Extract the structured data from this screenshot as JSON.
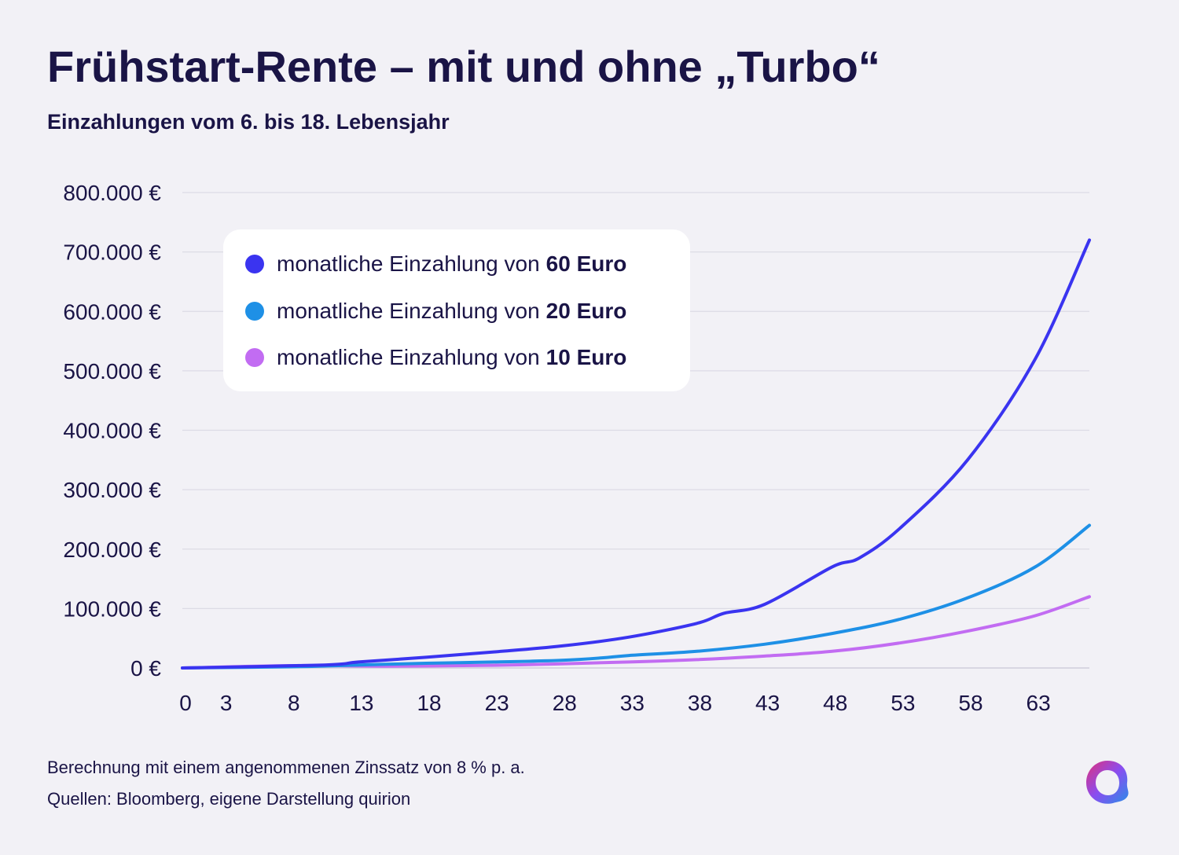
{
  "chart_data": {
    "type": "line",
    "title": "Frühstart-Rente – mit und ohne „Turbo“",
    "subtitle": "Einzahlungen vom 6. bis 18. Lebensjahr",
    "xlabel": "",
    "ylabel": "",
    "xlim": [
      0,
      67
    ],
    "ylim": [
      0,
      800000
    ],
    "x_ticks": [
      0,
      3,
      8,
      13,
      18,
      23,
      28,
      33,
      38,
      43,
      48,
      53,
      58,
      63
    ],
    "x_tick_labels": [
      "0",
      "3",
      "8",
      "13",
      "18",
      "23",
      "28",
      "33",
      "38",
      "43",
      "48",
      "53",
      "58",
      "63"
    ],
    "y_ticks": [
      0,
      100000,
      200000,
      300000,
      400000,
      500000,
      600000,
      700000,
      800000
    ],
    "y_tick_labels": [
      "0 €",
      "100.000 €",
      "200.000 €",
      "300.000 €",
      "400.000 €",
      "500.000 €",
      "600.000 €",
      "700.000 €",
      "800.000 €"
    ],
    "grid": true,
    "legend_position": "top-left",
    "series": [
      {
        "name": "monatliche Einzahlung von 60 Euro",
        "legend_prefix": "monatliche Einzahlung von",
        "legend_amount": "60 Euro",
        "color": "#3a34f0",
        "x": [
          10.5,
          13,
          18,
          23,
          28,
          33,
          38,
          40,
          43,
          48,
          50,
          53,
          58,
          63,
          67
        ],
        "y": [
          5000,
          10000,
          18000,
          27000,
          37000,
          52000,
          75000,
          92000,
          107000,
          170000,
          185000,
          235000,
          350000,
          520000,
          720000
        ]
      },
      {
        "name": "monatliche Einzahlung von 20 Euro",
        "legend_prefix": "monatliche Einzahlung von",
        "legend_amount": "20 Euro",
        "color": "#1e90e6",
        "x": [
          8,
          13,
          18,
          23,
          28,
          31,
          33,
          38,
          43,
          48,
          53,
          58,
          63,
          67
        ],
        "y": [
          2000,
          5000,
          8000,
          10000,
          13000,
          17000,
          21000,
          28000,
          40000,
          58000,
          82000,
          118000,
          170000,
          240000
        ]
      },
      {
        "name": "monatliche Einzahlung von 10 Euro",
        "legend_prefix": "monatliche Einzahlung von",
        "legend_amount": "10 Euro",
        "color": "#c26cf2",
        "x": [
          8,
          15,
          23,
          28,
          33,
          38,
          43,
          48,
          53,
          58,
          63,
          67
        ],
        "y": [
          4000,
          3000,
          4500,
          7000,
          10000,
          14000,
          20000,
          28000,
          42000,
          62000,
          88000,
          120000
        ]
      }
    ]
  },
  "footnotes": [
    "Berechnung mit einem angenommenen Zinssatz von 8 % p. a.",
    "Quellen: Bloomberg, eigene Darstellung quirion"
  ]
}
